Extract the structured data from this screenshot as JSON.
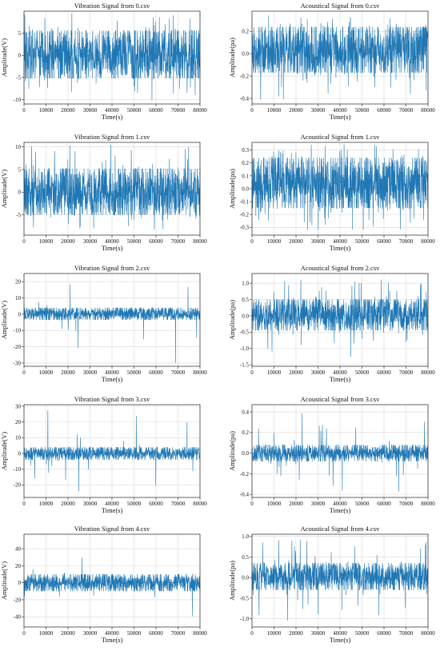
{
  "chart_data": [
    {
      "type": "line",
      "title": "Vibration Signal from 0.csv",
      "xlabel": "Time(s)",
      "ylabel": "Amplitude(V)",
      "xlim": [
        0,
        80000
      ],
      "ylim": [
        -11,
        10
      ],
      "xticks": [
        0,
        10000,
        20000,
        30000,
        40000,
        50000,
        60000,
        70000,
        80000
      ],
      "yticks": [
        -10,
        -5,
        0,
        5
      ],
      "grid": true,
      "series": [
        {
          "n_samples": 80000,
          "center": 0,
          "band": [
            -5.2,
            5.6
          ],
          "spike_range": [
            -10.5,
            9.8
          ],
          "spike_rate": 0.04
        }
      ]
    },
    {
      "type": "line",
      "title": "Acoustical Signal from 0.csv",
      "xlabel": "Time(s)",
      "ylabel": "Amplitude(pa)",
      "xlim": [
        0,
        80000
      ],
      "ylim": [
        -0.45,
        0.38
      ],
      "xticks": [
        0,
        10000,
        20000,
        30000,
        40000,
        50000,
        60000,
        70000,
        80000
      ],
      "yticks": [
        -0.4,
        -0.2,
        0.0,
        0.2
      ],
      "grid": true,
      "series": [
        {
          "n_samples": 80000,
          "center": 0,
          "band": [
            -0.17,
            0.24
          ],
          "spike_range": [
            -0.42,
            0.35
          ],
          "spike_rate": 0.05
        }
      ]
    },
    {
      "type": "line",
      "title": "Vibration Signal from 1.csv",
      "xlabel": "Time(s)",
      "ylabel": "Amplitude(V)",
      "xlim": [
        0,
        80000
      ],
      "ylim": [
        -9.5,
        11
      ],
      "xticks": [
        0,
        10000,
        20000,
        30000,
        40000,
        50000,
        60000,
        70000,
        80000
      ],
      "yticks": [
        -5,
        0,
        5,
        10
      ],
      "grid": true,
      "series": [
        {
          "n_samples": 80000,
          "center": 0,
          "band": [
            -5.0,
            5.2
          ],
          "spike_range": [
            -8.5,
            10.5
          ],
          "spike_rate": 0.03
        }
      ]
    },
    {
      "type": "line",
      "title": "Acoustical Signal from 1.csv",
      "xlabel": "Time(s)",
      "ylabel": "Amplitude(pa)",
      "xlim": [
        0,
        80000
      ],
      "ylim": [
        -0.36,
        0.36
      ],
      "xticks": [
        0,
        10000,
        20000,
        30000,
        40000,
        50000,
        60000,
        70000,
        80000
      ],
      "yticks": [
        -0.3,
        -0.2,
        -0.1,
        0.0,
        0.1,
        0.2,
        0.3
      ],
      "grid": true,
      "series": [
        {
          "n_samples": 80000,
          "center": 0,
          "band": [
            -0.15,
            0.24
          ],
          "spike_range": [
            -0.34,
            0.35
          ],
          "spike_rate": 0.05
        }
      ]
    },
    {
      "type": "line",
      "title": "Vibration Signal from 2.csv",
      "xlabel": "Time(s)",
      "ylabel": "Amplitude(V)",
      "xlim": [
        0,
        80000
      ],
      "ylim": [
        -32,
        25
      ],
      "xticks": [
        0,
        10000,
        20000,
        30000,
        40000,
        50000,
        60000,
        70000,
        80000
      ],
      "yticks": [
        -30,
        -20,
        -10,
        0,
        10,
        20
      ],
      "grid": true,
      "series": [
        {
          "n_samples": 80000,
          "center": 0,
          "band": [
            -3.5,
            4.0
          ],
          "spike_range": [
            -30,
            23
          ],
          "spike_rate": 0.012
        }
      ]
    },
    {
      "type": "line",
      "title": "Acoustical Signal from 2.csv",
      "xlabel": "Time(s)",
      "ylabel": "Amplitude(pa)",
      "xlim": [
        0,
        80000
      ],
      "ylim": [
        -1.55,
        1.3
      ],
      "xticks": [
        0,
        10000,
        20000,
        30000,
        40000,
        50000,
        60000,
        70000,
        80000
      ],
      "yticks": [
        -1.5,
        -1.0,
        -0.5,
        0.0,
        0.5,
        1.0
      ],
      "grid": true,
      "series": [
        {
          "n_samples": 80000,
          "center": 0,
          "band": [
            -0.45,
            0.5
          ],
          "spike_range": [
            -1.4,
            1.2
          ],
          "spike_rate": 0.04
        }
      ]
    },
    {
      "type": "line",
      "title": "Vibration Signal from 3.csv",
      "xlabel": "Time(s)",
      "ylabel": "Amplitude(V)",
      "xlim": [
        0,
        80000
      ],
      "ylim": [
        -28,
        31
      ],
      "xticks": [
        0,
        10000,
        20000,
        30000,
        40000,
        50000,
        60000,
        70000,
        80000
      ],
      "yticks": [
        -20,
        -10,
        0,
        10,
        20,
        30
      ],
      "grid": true,
      "series": [
        {
          "n_samples": 80000,
          "center": 0,
          "band": [
            -4.0,
            4.0
          ],
          "spike_range": [
            -26,
            28
          ],
          "spike_rate": 0.015
        }
      ]
    },
    {
      "type": "line",
      "title": "Acoustical Signal from 3.csv",
      "xlabel": "Time(s)",
      "ylabel": "Amplitude(pa)",
      "xlim": [
        0,
        80000
      ],
      "ylim": [
        -0.43,
        0.47
      ],
      "xticks": [
        0,
        10000,
        20000,
        30000,
        40000,
        50000,
        60000,
        70000,
        80000
      ],
      "yticks": [
        -0.4,
        -0.2,
        0.0,
        0.2,
        0.4
      ],
      "grid": true,
      "series": [
        {
          "n_samples": 80000,
          "center": 0,
          "band": [
            -0.08,
            0.08
          ],
          "spike_range": [
            -0.38,
            0.43
          ],
          "spike_rate": 0.02
        }
      ]
    },
    {
      "type": "line",
      "title": "Vibration Signal from 4.csv",
      "xlabel": "Time(s)",
      "ylabel": "Amplitude(V)",
      "xlim": [
        0,
        80000
      ],
      "ylim": [
        -52,
        57
      ],
      "xticks": [
        0,
        10000,
        20000,
        30000,
        40000,
        50000,
        60000,
        70000,
        80000
      ],
      "yticks": [
        -40,
        -20,
        0,
        20,
        40
      ],
      "grid": true,
      "series": [
        {
          "n_samples": 80000,
          "center": 0,
          "band": [
            -10,
            10
          ],
          "spike_range": [
            -48,
            52
          ],
          "spike_rate": 0.015
        }
      ]
    },
    {
      "type": "line",
      "title": "Acoustical Signal from 4.csv",
      "xlabel": "Time(s)",
      "ylabel": "Amplitude(pa)",
      "xlim": [
        0,
        80000
      ],
      "ylim": [
        -1.2,
        1.05
      ],
      "xticks": [
        0,
        10000,
        20000,
        30000,
        40000,
        50000,
        60000,
        70000,
        80000
      ],
      "yticks": [
        -1.0,
        -0.5,
        0.0,
        0.5,
        1.0
      ],
      "grid": true,
      "series": [
        {
          "n_samples": 80000,
          "center": 0,
          "band": [
            -0.3,
            0.35
          ],
          "spike_range": [
            -1.1,
            0.95
          ],
          "spike_rate": 0.03
        }
      ]
    }
  ],
  "colors": {
    "signal": "#1f77b4",
    "grid": "#d9d9d9",
    "frame": "#222222"
  }
}
